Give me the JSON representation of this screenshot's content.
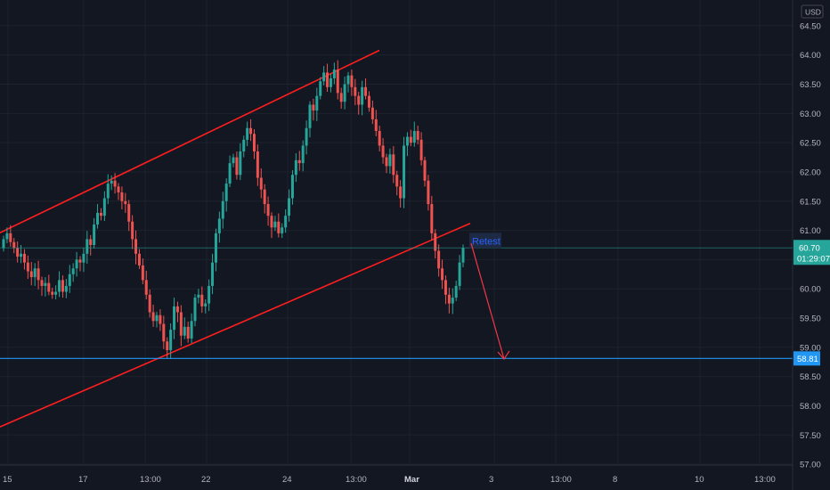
{
  "chart_data": {
    "type": "candlestick",
    "currency": "USD",
    "ylim": [
      56.75,
      64.75
    ],
    "y_ticks": [
      "64.50",
      "64.00",
      "63.50",
      "63.00",
      "62.50",
      "62.00",
      "61.50",
      "61.00",
      "60.50",
      "60.00",
      "59.50",
      "59.00",
      "58.50",
      "58.00",
      "57.50",
      "57.00"
    ],
    "x_ticks": [
      {
        "label": "15",
        "bold": false
      },
      {
        "label": "17",
        "bold": false
      },
      {
        "label": "13:00",
        "bold": false
      },
      {
        "label": "22",
        "bold": false
      },
      {
        "label": "24",
        "bold": false
      },
      {
        "label": "13:00",
        "bold": false
      },
      {
        "label": "Mar",
        "bold": true
      },
      {
        "label": "3",
        "bold": false
      },
      {
        "label": "13:00",
        "bold": false
      },
      {
        "label": "8",
        "bold": false
      },
      {
        "label": "10",
        "bold": false
      },
      {
        "label": "13:00",
        "bold": false
      }
    ],
    "current_price": {
      "price": "60.70",
      "countdown": "01:29:07",
      "color": "#26a69a"
    },
    "target_level": {
      "price": "58.81",
      "color": "#2196f3"
    },
    "annotation": {
      "text": "Retest",
      "color": "#2962ff"
    },
    "colors": {
      "up": "#26a69a",
      "down": "#ef5350",
      "channel": "#ff1e1e",
      "arrow": "#f23645",
      "background": "#131722",
      "grid": "#1e222d"
    },
    "candle_closes": [
      60.85,
      60.95,
      60.8,
      60.7,
      60.55,
      60.6,
      60.45,
      60.3,
      60.2,
      60.35,
      60.15,
      60.05,
      60.1,
      59.95,
      59.9,
      59.95,
      60.15,
      59.95,
      60.05,
      60.25,
      60.35,
      60.5,
      60.45,
      60.6,
      60.85,
      60.75,
      61.1,
      61.3,
      61.25,
      61.55,
      61.8,
      61.85,
      61.75,
      61.65,
      61.5,
      61.45,
      61.15,
      60.85,
      60.6,
      60.4,
      60.15,
      59.9,
      59.6,
      59.45,
      59.55,
      59.4,
      59.1,
      58.95,
      59.3,
      59.7,
      59.6,
      59.2,
      59.35,
      59.15,
      59.45,
      59.85,
      59.9,
      59.7,
      59.75,
      60.05,
      60.45,
      60.95,
      61.2,
      61.5,
      61.8,
      62.15,
      62.25,
      61.95,
      62.35,
      62.55,
      62.75,
      62.65,
      62.35,
      61.9,
      61.7,
      61.45,
      61.25,
      61.05,
      61.15,
      60.95,
      61.05,
      61.25,
      61.55,
      61.95,
      62.2,
      62.15,
      62.45,
      62.75,
      63.15,
      63.05,
      63.3,
      63.55,
      63.7,
      63.45,
      63.6,
      63.75,
      63.35,
      63.2,
      63.5,
      63.65,
      63.45,
      63.3,
      63.15,
      63.45,
      63.3,
      63.1,
      62.9,
      62.7,
      62.45,
      62.25,
      62.1,
      62.3,
      61.95,
      61.75,
      61.55,
      62.45,
      62.6,
      62.5,
      62.7,
      62.55,
      62.2,
      61.85,
      61.45,
      60.95,
      60.65,
      60.35,
      60.15,
      59.9,
      59.75,
      59.85,
      60.05,
      60.45,
      60.7
    ]
  }
}
